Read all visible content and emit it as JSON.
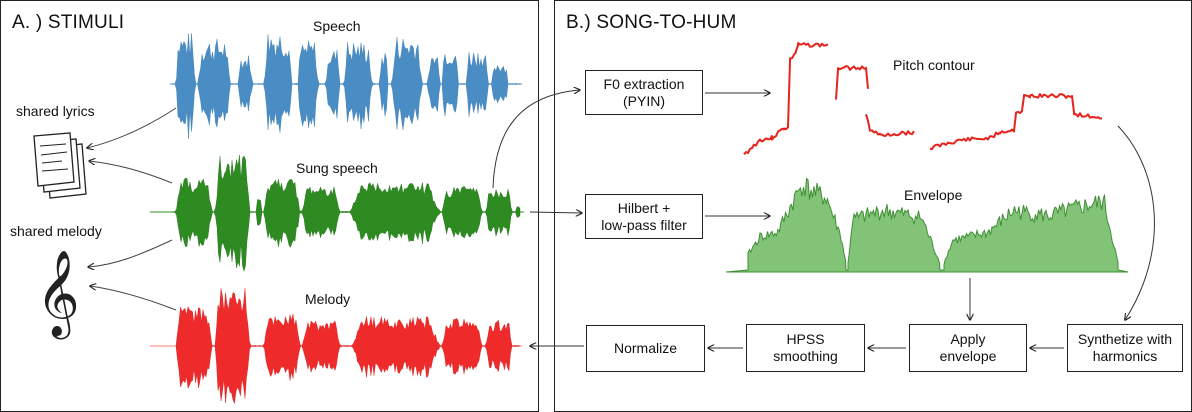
{
  "panel_a": {
    "title": "A. ) STIMULI",
    "waves": {
      "speech": "Speech",
      "sung_speech": "Sung speech",
      "melody": "Melody"
    },
    "shared_lyrics": "shared lyrics",
    "shared_melody": "shared melody"
  },
  "panel_b": {
    "title": "B.) SONG-TO-HUM",
    "pitch_contour": "Pitch contour",
    "envelope": "Envelope",
    "boxes": {
      "f0": "F0 extraction\n(PYIN)",
      "hilbert": "Hilbert +\nlow-pass filter",
      "synthesize": "Synthetize with\nharmonics",
      "apply_env": "Apply\nenvelope",
      "hpss": "HPSS\nsmoothing",
      "normalize": "Normalize"
    }
  },
  "colors": {
    "speech": "#4a8cc4",
    "sung": "#2e8b22",
    "melody": "#ee2a2a",
    "pitch": "#e8221c",
    "envelope_fill": "#6cb860",
    "envelope_line": "#3f8f35"
  }
}
